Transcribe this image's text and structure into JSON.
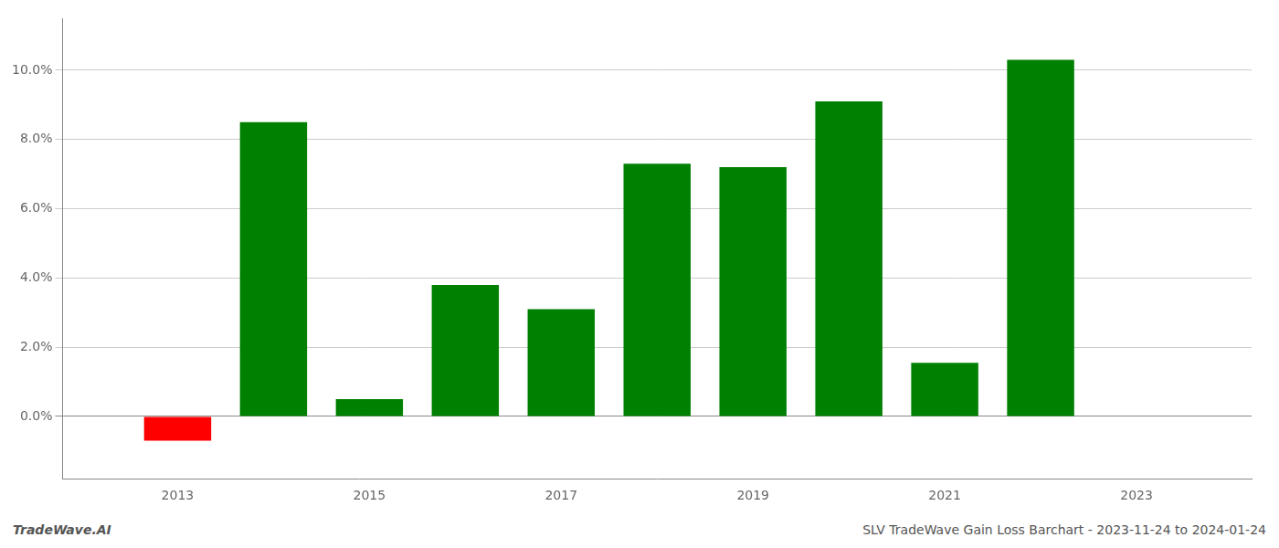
{
  "chart_data": {
    "type": "bar",
    "x": [
      2013,
      2014,
      2015,
      2016,
      2017,
      2018,
      2019,
      2020,
      2021,
      2022
    ],
    "values": [
      -0.007,
      0.085,
      0.005,
      0.038,
      0.031,
      0.073,
      0.072,
      0.091,
      0.0155,
      0.103
    ],
    "colors": [
      "#ff0000",
      "#008000",
      "#008000",
      "#008000",
      "#008000",
      "#008000",
      "#008000",
      "#008000",
      "#008000",
      "#008000"
    ],
    "xlim": [
      2011.8,
      2024.2
    ],
    "xticks": [
      2013,
      2015,
      2017,
      2019,
      2021,
      2023
    ],
    "ylim": [
      -0.018,
      0.115
    ],
    "yticks": [
      {
        "value": 0.0,
        "label": "0.0%"
      },
      {
        "value": 0.02,
        "label": "2.0%"
      },
      {
        "value": 0.04,
        "label": "4.0%"
      },
      {
        "value": 0.06,
        "label": "6.0%"
      },
      {
        "value": 0.08,
        "label": "8.0%"
      },
      {
        "value": 0.1,
        "label": "10.0%"
      }
    ],
    "grid": "y",
    "annotations": [
      "TradeWave.AI",
      "SLV TradeWave Gain Loss Barchart - 2023-11-24 to 2024-01-24"
    ]
  }
}
